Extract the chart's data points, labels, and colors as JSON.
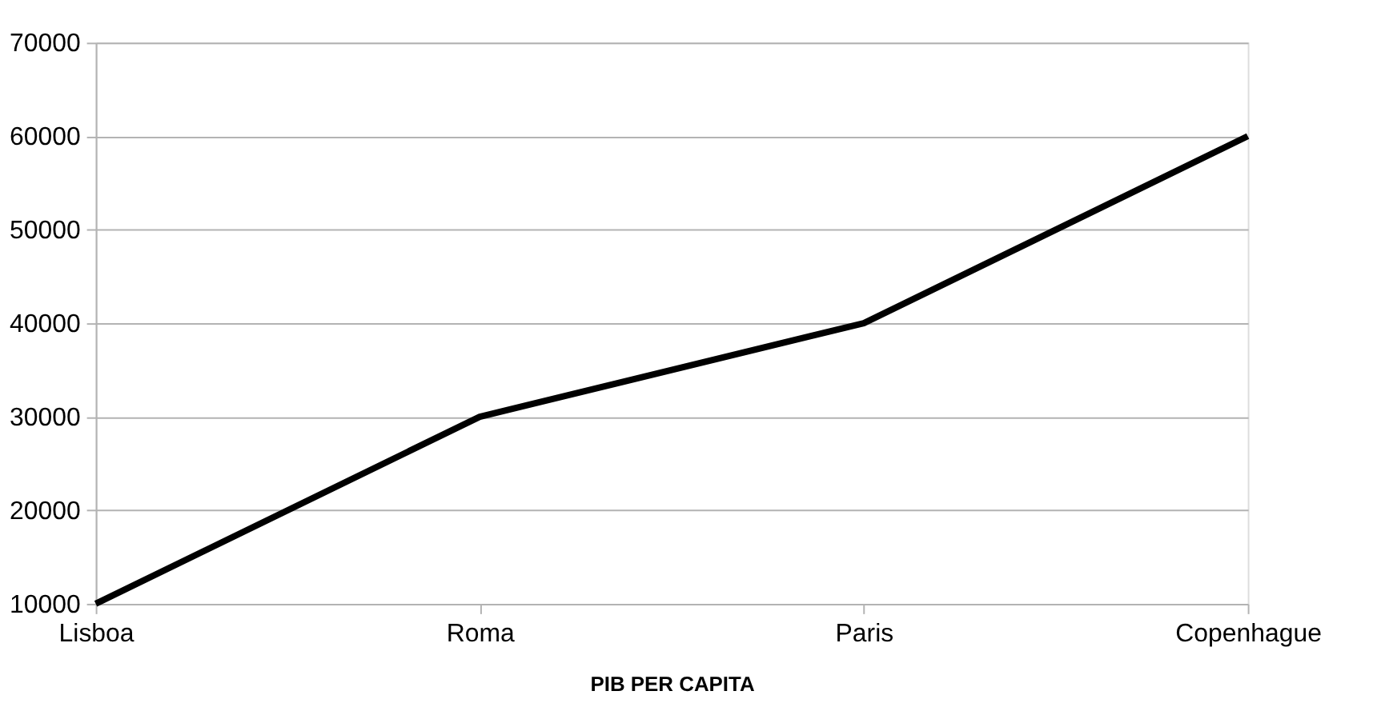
{
  "chart_data": {
    "type": "line",
    "xlabel": "PIB PER CAPITA",
    "categories": [
      "Lisboa",
      "Roma",
      "Paris",
      "Copenhague"
    ],
    "series": [
      {
        "color": "#000000",
        "values": [
          10000,
          30000,
          40000,
          60000
        ]
      }
    ],
    "ylim": [
      10000,
      70000
    ],
    "yticks": [
      10000,
      20000,
      30000,
      40000,
      50000,
      60000,
      70000
    ],
    "grid": "y",
    "marker": "none",
    "line_style": "solid",
    "legend": false
  }
}
